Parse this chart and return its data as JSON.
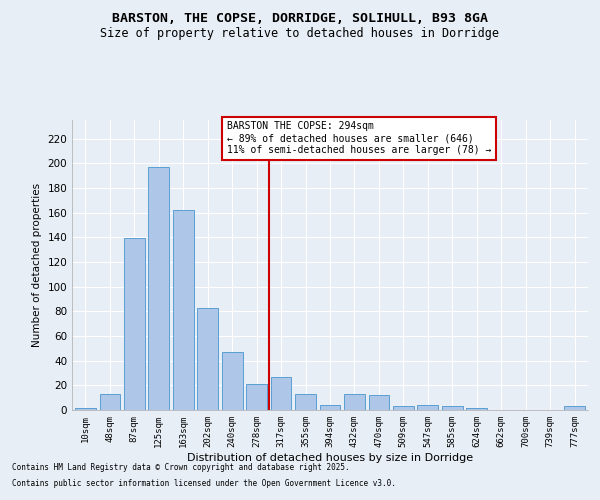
{
  "title1": "BARSTON, THE COPSE, DORRIDGE, SOLIHULL, B93 8GA",
  "title2": "Size of property relative to detached houses in Dorridge",
  "xlabel": "Distribution of detached houses by size in Dorridge",
  "ylabel": "Number of detached properties",
  "categories": [
    "10sqm",
    "48sqm",
    "87sqm",
    "125sqm",
    "163sqm",
    "202sqm",
    "240sqm",
    "278sqm",
    "317sqm",
    "355sqm",
    "394sqm",
    "432sqm",
    "470sqm",
    "509sqm",
    "547sqm",
    "585sqm",
    "624sqm",
    "662sqm",
    "700sqm",
    "739sqm",
    "777sqm"
  ],
  "values": [
    2,
    13,
    139,
    197,
    162,
    83,
    47,
    21,
    27,
    13,
    4,
    13,
    12,
    3,
    4,
    3,
    2,
    0,
    0,
    0,
    3
  ],
  "bar_color": "#aec6e8",
  "bar_edge_color": "#5a9fd4",
  "background_color": "#e8eef6",
  "grid_color": "#ffffff",
  "annotation_property": "BARSTON THE COPSE: 294sqm",
  "annotation_left": "← 89% of detached houses are smaller (646)",
  "annotation_right": "11% of semi-detached houses are larger (78) →",
  "annotation_box_color": "#ffffff",
  "annotation_box_edge": "#cc0000",
  "vline_color": "#cc0000",
  "vline_x_index": 7.5,
  "ylim": [
    0,
    235
  ],
  "yticks": [
    0,
    20,
    40,
    60,
    80,
    100,
    120,
    140,
    160,
    180,
    200,
    220
  ],
  "footnote1": "Contains HM Land Registry data © Crown copyright and database right 2025.",
  "footnote2": "Contains public sector information licensed under the Open Government Licence v3.0."
}
